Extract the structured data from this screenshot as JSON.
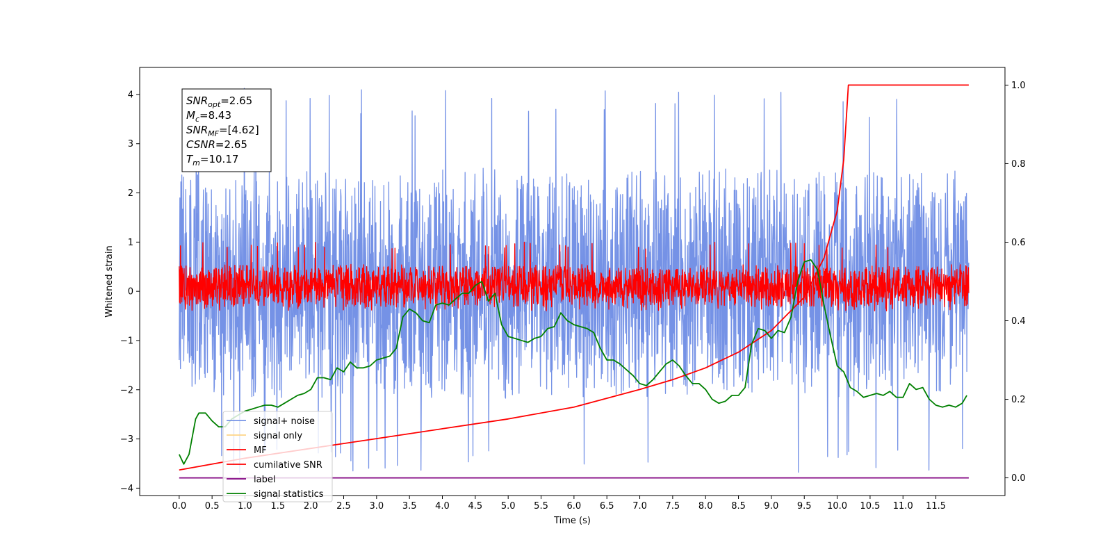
{
  "chart_data": {
    "type": "line",
    "title": "",
    "xlabel": "Time (s)",
    "ylabel": "Whitened strain",
    "ylabel_right": "",
    "xlim": [
      -0.6,
      12.55
    ],
    "ylim": [
      -4.15,
      4.55
    ],
    "ylim_right": [
      -0.045,
      1.045
    ],
    "grid": false,
    "legend_position": "lower-left",
    "x_ticks": [
      "0.0",
      "0.5",
      "1.0",
      "1.5",
      "2.0",
      "2.5",
      "3.0",
      "3.5",
      "4.0",
      "4.5",
      "5.0",
      "5.5",
      "6.0",
      "6.5",
      "7.0",
      "7.5",
      "8.0",
      "8.5",
      "9.0",
      "9.5",
      "10.0",
      "10.5",
      "11.0",
      "11.5"
    ],
    "y_ticks": [
      "4",
      "3",
      "2",
      "1",
      "0",
      "−1",
      "−2",
      "−3",
      "−4"
    ],
    "y_ticks_right": [
      "1.0",
      "0.8",
      "0.6",
      "0.4",
      "0.2",
      "0.0"
    ],
    "info_box": [
      {
        "main": "SNR",
        "sub": "opt",
        "value": "=2.65"
      },
      {
        "main": "M",
        "sub": "c",
        "value": "=8.43"
      },
      {
        "main": "SNR",
        "sub": "MF",
        "value": "=[4.62]"
      },
      {
        "main": "CSNR",
        "sub": "",
        "value": "=2.65"
      },
      {
        "main": "T",
        "sub": "m",
        "value": "=10.17"
      }
    ],
    "series": [
      {
        "name": "signal+ noise",
        "color": "#7592e6",
        "axis": "left",
        "kind": "noise",
        "x_range": [
          0.0,
          12.0
        ],
        "mean": 0.0,
        "band": [
          -2.2,
          2.5
        ],
        "extremes": [
          -3.75,
          4.15
        ]
      },
      {
        "name": "signal only",
        "color": "#fed586",
        "axis": "left",
        "kind": "hidden"
      },
      {
        "name": "MF",
        "color": "#ff0000",
        "axis": "left",
        "kind": "noise",
        "x_range": [
          0.0,
          12.0
        ],
        "mean": 0.0,
        "band": [
          -0.35,
          0.55
        ],
        "extremes": [
          -0.4,
          1.0
        ]
      },
      {
        "name": "cumilative SNR",
        "color": "#ff0000",
        "axis": "right",
        "kind": "line",
        "x": [
          0.0,
          0.5,
          1.0,
          2.0,
          3.0,
          4.0,
          5.0,
          6.0,
          7.0,
          7.5,
          8.0,
          8.5,
          9.0,
          9.5,
          9.8,
          10.0,
          10.1,
          10.17,
          12.0
        ],
        "y": [
          0.02,
          0.035,
          0.05,
          0.075,
          0.1,
          0.125,
          0.15,
          0.18,
          0.225,
          0.25,
          0.28,
          0.32,
          0.375,
          0.46,
          0.56,
          0.68,
          0.81,
          1.0,
          1.0
        ]
      },
      {
        "name": "label",
        "color": "#800080",
        "axis": "right",
        "kind": "line",
        "x": [
          0.0,
          12.0
        ],
        "y": [
          0.0,
          0.0
        ]
      },
      {
        "name": "signal statistics",
        "color": "#008000",
        "axis": "right",
        "kind": "line",
        "x": [
          0.0,
          0.07,
          0.15,
          0.25,
          0.3,
          0.4,
          0.5,
          0.6,
          0.7,
          0.8,
          0.9,
          1.0,
          1.1,
          1.2,
          1.3,
          1.4,
          1.5,
          1.6,
          1.7,
          1.8,
          1.9,
          2.0,
          2.1,
          2.2,
          2.3,
          2.4,
          2.5,
          2.6,
          2.7,
          2.8,
          2.9,
          3.0,
          3.1,
          3.2,
          3.3,
          3.4,
          3.5,
          3.6,
          3.7,
          3.8,
          3.9,
          4.0,
          4.1,
          4.2,
          4.3,
          4.4,
          4.5,
          4.6,
          4.7,
          4.8,
          4.9,
          5.0,
          5.1,
          5.2,
          5.3,
          5.4,
          5.5,
          5.6,
          5.7,
          5.8,
          5.9,
          6.0,
          6.1,
          6.2,
          6.3,
          6.4,
          6.5,
          6.6,
          6.7,
          6.8,
          6.9,
          7.0,
          7.1,
          7.2,
          7.3,
          7.4,
          7.5,
          7.6,
          7.7,
          7.8,
          7.9,
          8.0,
          8.1,
          8.2,
          8.3,
          8.4,
          8.5,
          8.6,
          8.7,
          8.8,
          8.9,
          9.0,
          9.1,
          9.2,
          9.3,
          9.4,
          9.5,
          9.6,
          9.7,
          9.8,
          9.9,
          10.0,
          10.1,
          10.2,
          10.3,
          10.4,
          10.5,
          10.6,
          10.7,
          10.8,
          10.9,
          11.0,
          11.1,
          11.2,
          11.3,
          11.4,
          11.5,
          11.6,
          11.7,
          11.8,
          11.9,
          11.97
        ],
        "y": [
          0.06,
          0.035,
          0.06,
          0.15,
          0.165,
          0.165,
          0.145,
          0.13,
          0.13,
          0.15,
          0.16,
          0.17,
          0.175,
          0.18,
          0.185,
          0.185,
          0.18,
          0.19,
          0.2,
          0.21,
          0.215,
          0.225,
          0.255,
          0.255,
          0.25,
          0.28,
          0.27,
          0.295,
          0.28,
          0.28,
          0.285,
          0.3,
          0.305,
          0.31,
          0.33,
          0.41,
          0.43,
          0.42,
          0.4,
          0.395,
          0.44,
          0.445,
          0.44,
          0.455,
          0.47,
          0.47,
          0.49,
          0.5,
          0.45,
          0.47,
          0.39,
          0.36,
          0.355,
          0.35,
          0.345,
          0.355,
          0.36,
          0.38,
          0.385,
          0.42,
          0.4,
          0.39,
          0.385,
          0.38,
          0.37,
          0.33,
          0.3,
          0.3,
          0.29,
          0.275,
          0.26,
          0.24,
          0.235,
          0.25,
          0.27,
          0.29,
          0.3,
          0.285,
          0.26,
          0.24,
          0.24,
          0.225,
          0.2,
          0.19,
          0.195,
          0.21,
          0.21,
          0.23,
          0.34,
          0.38,
          0.375,
          0.355,
          0.375,
          0.37,
          0.41,
          0.5,
          0.55,
          0.555,
          0.53,
          0.44,
          0.36,
          0.285,
          0.27,
          0.23,
          0.22,
          0.205,
          0.21,
          0.215,
          0.21,
          0.22,
          0.205,
          0.205,
          0.24,
          0.225,
          0.23,
          0.2,
          0.185,
          0.18,
          0.185,
          0.18,
          0.19,
          0.21
        ]
      }
    ]
  }
}
